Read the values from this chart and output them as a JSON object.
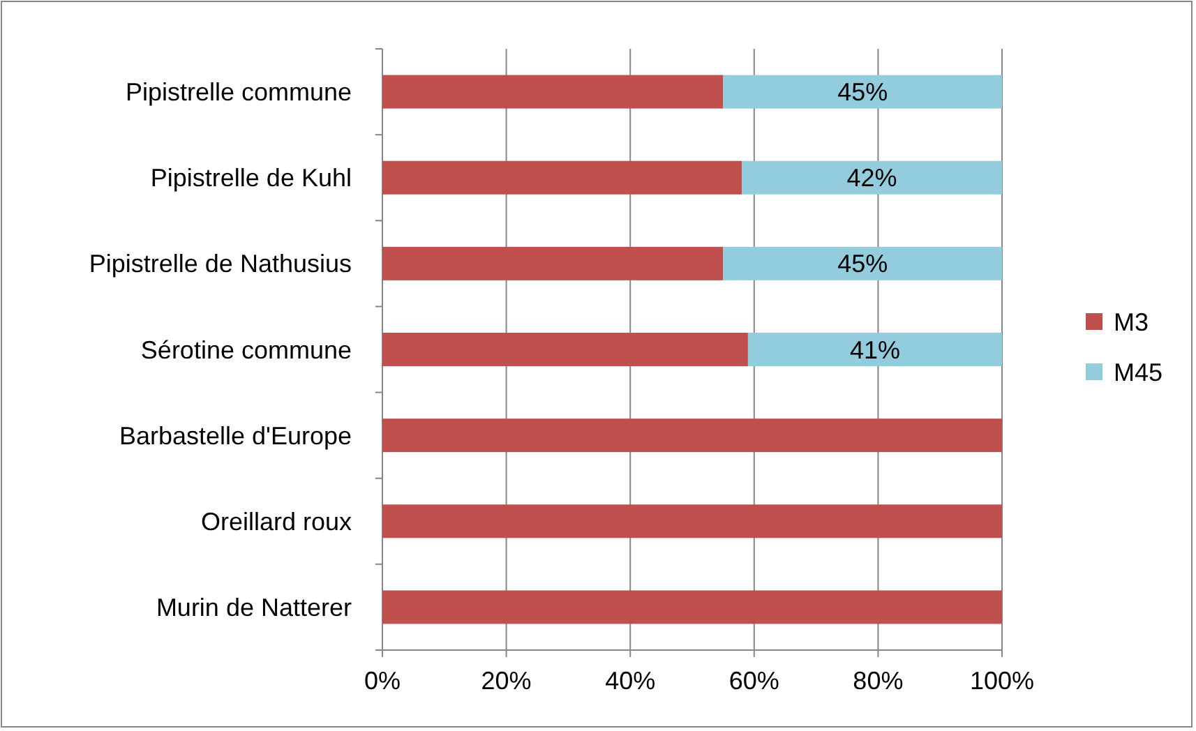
{
  "chart_data": {
    "type": "bar",
    "orientation": "horizontal",
    "stacked": true,
    "categories": [
      "Pipistrelle commune",
      "Pipistrelle de Kuhl",
      "Pipistrelle de Nathusius",
      "Sérotine commune",
      "Barbastelle d'Europe",
      "Oreillard roux",
      "Murin de Natterer"
    ],
    "series": [
      {
        "name": "M3",
        "color": "#c0504d",
        "values": [
          55,
          58,
          55,
          59,
          100,
          100,
          100
        ]
      },
      {
        "name": "M45",
        "color": "#93cddd",
        "values": [
          45,
          42,
          45,
          41,
          null,
          null,
          null
        ],
        "value_labels": [
          "45%",
          "42%",
          "45%",
          "41%",
          null,
          null,
          null
        ]
      }
    ],
    "xlim": [
      0,
      100
    ],
    "xticks": [
      {
        "value": 0,
        "label": "0%"
      },
      {
        "value": 20,
        "label": "20%"
      },
      {
        "value": 40,
        "label": "40%"
      },
      {
        "value": 60,
        "label": "60%"
      },
      {
        "value": 80,
        "label": "80%"
      },
      {
        "value": 100,
        "label": "100%"
      }
    ],
    "grid": "x",
    "legend": "right"
  }
}
